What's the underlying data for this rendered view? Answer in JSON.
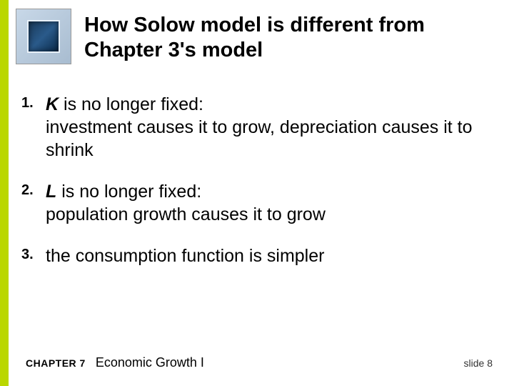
{
  "colors": {
    "accent_stripe": "#bad700",
    "title_color": "#000000",
    "body_color": "#000000",
    "icon_outer_bg_start": "#c8d8e8",
    "icon_outer_bg_end": "#a8bcd0",
    "icon_inner_bg_start": "#1a3a5a",
    "icon_inner_bg_end": "#0a2a4a"
  },
  "typography": {
    "title_fontsize": 29,
    "title_weight": "bold",
    "number_fontsize": 20,
    "number_weight": "bold",
    "body_fontsize": 25,
    "footer_label_fontsize": 14,
    "footer_title_fontsize": 18,
    "slide_num_fontsize": 14,
    "font_family": "Arial"
  },
  "title": "How Solow model is different from Chapter 3's model",
  "items": [
    {
      "num": "1.",
      "var": "K",
      "lead": "  is no longer fixed:",
      "rest": "investment causes it to grow, depreciation causes it to shrink"
    },
    {
      "num": "2.",
      "var": "L",
      "lead": "  is no longer fixed:",
      "rest": "population growth causes it to grow"
    },
    {
      "num": "3.",
      "var": "",
      "lead": "the consumption function is simpler",
      "rest": ""
    }
  ],
  "footer": {
    "chapter_label": "CHAPTER 7",
    "chapter_title": "Economic Growth I",
    "slide": "slide 8"
  }
}
